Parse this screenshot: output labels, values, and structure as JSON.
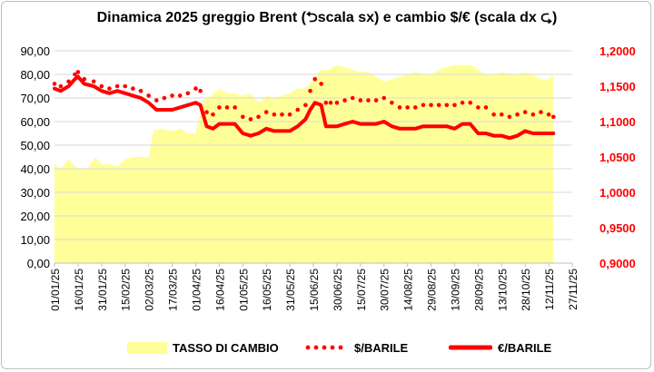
{
  "chart_data": {
    "type": "line",
    "title": "Dinamica 2025 greggio Brent (⮌scala sx) e cambio $/€ (scala dx ⮎)",
    "left_axis": {
      "min": 0,
      "max": 90,
      "step": 10,
      "tick_labels": [
        "0,00",
        "10,00",
        "20,00",
        "30,00",
        "40,00",
        "50,00",
        "60,00",
        "70,00",
        "80,00",
        "90,00"
      ]
    },
    "right_axis": {
      "min": 0.9,
      "max": 1.2,
      "step": 0.05,
      "tick_labels": [
        "0,9000",
        "0,9500",
        "1,0000",
        "1,0500",
        "1,1000",
        "1,1500",
        "1,2000"
      ],
      "color": "#ff0000"
    },
    "x_tick_labels": [
      "01/01/25",
      "16/01/25",
      "31/01/25",
      "15/02/25",
      "02/03/25",
      "17/03/25",
      "01/04/25",
      "16/04/25",
      "01/05/25",
      "16/05/25",
      "31/05/25",
      "15/06/25",
      "30/06/25",
      "15/07/25",
      "30/07/25",
      "14/08/25",
      "29/08/25",
      "13/09/25",
      "28/09/25",
      "13/10/25",
      "28/10/25",
      "12/11/25",
      "27/11/25"
    ],
    "x_start": "01/01/25",
    "x_end": "27/11/25",
    "grid": "horizontal",
    "legend_position": "bottom",
    "series": [
      {
        "name": "TASSO DI CAMBIO",
        "style": "area",
        "axis": "left",
        "color": "#ffff99",
        "x": [
          "01/01/25",
          "05/01/25",
          "10/01/25",
          "16/01/25",
          "22/01/25",
          "27/01/25",
          "31/01/25",
          "05/02/25",
          "10/02/25",
          "15/02/25",
          "20/02/25",
          "25/02/25",
          "02/03/25",
          "05/03/25",
          "10/03/25",
          "17/03/25",
          "22/03/25",
          "27/03/25",
          "01/04/25",
          "06/04/25",
          "11/04/25",
          "16/04/25",
          "21/04/25",
          "26/04/25",
          "01/05/25",
          "06/05/25",
          "11/05/25",
          "16/05/25",
          "21/05/25",
          "26/05/25",
          "31/05/25",
          "05/06/25",
          "10/06/25",
          "15/06/25",
          "20/06/25",
          "25/06/25",
          "30/06/25",
          "05/07/25",
          "10/07/25",
          "15/07/25",
          "20/07/25",
          "25/07/25",
          "30/07/25",
          "04/08/25",
          "09/08/25",
          "14/08/25",
          "19/08/25",
          "24/08/25",
          "29/08/25",
          "03/09/25",
          "08/09/25",
          "13/09/25",
          "18/09/25",
          "23/09/25",
          "28/09/25",
          "03/10/25",
          "08/10/25",
          "13/10/25",
          "18/10/25",
          "23/10/25",
          "28/10/25",
          "02/11/25",
          "07/11/25",
          "12/11/25",
          "15/11/25"
        ],
        "values": [
          42,
          40,
          44,
          40,
          40,
          45,
          42,
          42,
          41,
          44,
          45,
          45,
          45,
          56,
          57,
          56,
          57,
          55,
          55,
          69,
          71,
          74,
          72,
          72,
          71,
          72,
          68,
          71,
          70,
          71,
          72,
          74,
          74,
          78,
          82,
          82,
          84,
          83,
          82,
          81,
          81,
          79,
          77,
          78,
          79,
          80,
          81,
          80,
          80,
          82,
          83,
          84,
          84,
          84,
          82,
          80,
          80,
          81,
          80,
          80,
          81,
          80,
          78,
          78,
          80
        ]
      },
      {
        "name": "$/BARILE",
        "style": "dotted",
        "axis": "left",
        "color": "#ff0000",
        "x": [
          "01/01/25",
          "05/01/25",
          "10/01/25",
          "14/01/25",
          "16/01/25",
          "20/01/25",
          "26/01/25",
          "31/01/25",
          "05/02/25",
          "10/02/25",
          "15/02/25",
          "20/02/25",
          "25/02/25",
          "02/03/25",
          "07/03/25",
          "12/03/25",
          "17/03/25",
          "22/03/25",
          "27/03/25",
          "01/04/25",
          "04/04/25",
          "08/04/25",
          "12/04/25",
          "16/04/25",
          "21/04/25",
          "26/04/25",
          "01/05/25",
          "06/05/25",
          "11/05/25",
          "16/05/25",
          "21/05/25",
          "26/05/25",
          "31/05/25",
          "05/06/25",
          "10/06/25",
          "13/06/25",
          "16/06/25",
          "20/06/25",
          "23/06/25",
          "26/06/25",
          "30/06/25",
          "05/07/25",
          "10/07/25",
          "15/07/25",
          "20/07/25",
          "25/07/25",
          "30/07/25",
          "04/08/25",
          "09/08/25",
          "14/08/25",
          "19/08/25",
          "24/08/25",
          "29/08/25",
          "03/09/25",
          "08/09/25",
          "13/09/25",
          "18/09/25",
          "23/09/25",
          "28/09/25",
          "03/10/25",
          "08/10/25",
          "13/10/25",
          "18/10/25",
          "23/10/25",
          "28/10/25",
          "02/11/25",
          "07/11/25",
          "12/11/25",
          "15/11/25"
        ],
        "values": [
          76,
          75,
          77,
          80,
          81,
          78,
          77,
          75,
          74,
          75,
          75,
          74,
          73,
          71,
          69,
          70,
          71,
          71,
          72,
          74,
          73,
          64,
          63,
          66,
          66,
          66,
          62,
          61,
          62,
          64,
          63,
          63,
          63,
          65,
          67,
          73,
          78,
          76,
          68,
          68,
          68,
          69,
          70,
          69,
          69,
          69,
          70,
          68,
          66,
          66,
          66,
          67,
          67,
          67,
          67,
          67,
          68,
          68,
          66,
          66,
          63,
          63,
          62,
          63,
          64,
          63,
          64,
          63,
          62
        ]
      },
      {
        "name": "€/BARILE",
        "style": "solid",
        "axis": "left",
        "color": "#ff0000",
        "x": [
          "01/01/25",
          "05/01/25",
          "10/01/25",
          "14/01/25",
          "16/01/25",
          "20/01/25",
          "26/01/25",
          "31/01/25",
          "05/02/25",
          "10/02/25",
          "15/02/25",
          "20/02/25",
          "25/02/25",
          "02/03/25",
          "07/03/25",
          "12/03/25",
          "17/03/25",
          "22/03/25",
          "27/03/25",
          "01/04/25",
          "04/04/25",
          "08/04/25",
          "12/04/25",
          "16/04/25",
          "21/04/25",
          "26/04/25",
          "01/05/25",
          "06/05/25",
          "11/05/25",
          "16/05/25",
          "21/05/25",
          "26/05/25",
          "31/05/25",
          "05/06/25",
          "10/06/25",
          "13/06/25",
          "16/06/25",
          "20/06/25",
          "23/06/25",
          "26/06/25",
          "30/06/25",
          "05/07/25",
          "10/07/25",
          "15/07/25",
          "20/07/25",
          "25/07/25",
          "30/07/25",
          "04/08/25",
          "09/08/25",
          "14/08/25",
          "19/08/25",
          "24/08/25",
          "29/08/25",
          "03/09/25",
          "08/09/25",
          "13/09/25",
          "18/09/25",
          "23/09/25",
          "28/09/25",
          "03/10/25",
          "08/10/25",
          "13/10/25",
          "18/10/25",
          "23/10/25",
          "28/10/25",
          "02/11/25",
          "07/11/25",
          "12/11/25",
          "15/11/25"
        ],
        "values": [
          74,
          73,
          75,
          78,
          79,
          76,
          75,
          73,
          72,
          73,
          72,
          71,
          70,
          68,
          65,
          65,
          65,
          66,
          67,
          68,
          67,
          58,
          57,
          59,
          59,
          59,
          55,
          54,
          55,
          57,
          56,
          56,
          56,
          58,
          61,
          65,
          68,
          67,
          58,
          58,
          58,
          59,
          60,
          59,
          59,
          59,
          60,
          58,
          57,
          57,
          57,
          58,
          58,
          58,
          58,
          57,
          59,
          59,
          55,
          55,
          54,
          54,
          53,
          54,
          56,
          55,
          55,
          55,
          55
        ]
      }
    ]
  }
}
